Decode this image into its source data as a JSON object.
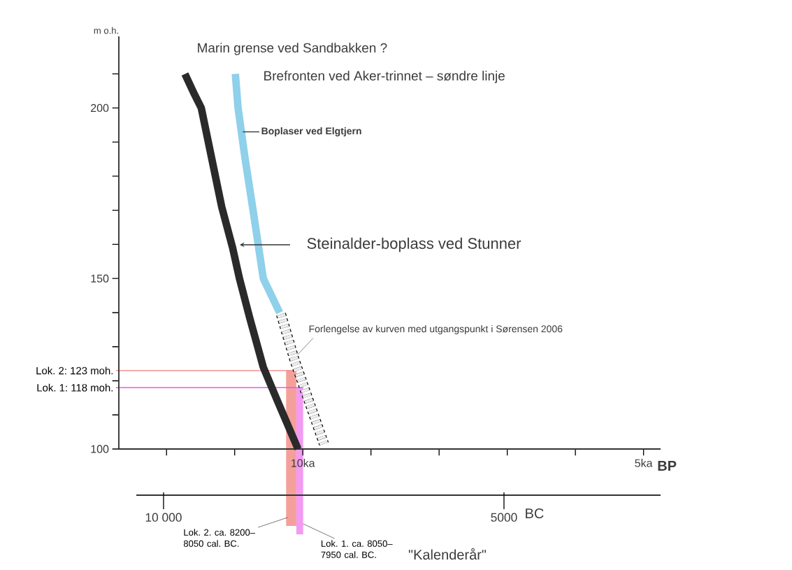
{
  "chart_data": {
    "type": "line",
    "title": "Marin grense ved Sandbakken ?",
    "ylabel": "m o.h.",
    "xlabel": "BP",
    "x2label": "BC",
    "xlim": [
      12.7,
      4.75
    ],
    "xticks": [
      {
        "value": 12,
        "label": null
      },
      {
        "value": 11,
        "label": null
      },
      {
        "value": 10,
        "label": "10ka"
      },
      {
        "value": 9,
        "label": null
      },
      {
        "value": 8,
        "label": null
      },
      {
        "value": 7,
        "label": null
      },
      {
        "value": 6,
        "label": null
      },
      {
        "value": 5,
        "label": "5ka"
      }
    ],
    "x2lim": [
      10400,
      2700
    ],
    "x2ticks": [
      {
        "value": 10000,
        "label": "10 000"
      },
      {
        "value": 5000,
        "label": "5000"
      }
    ],
    "ylim": [
      100,
      221
    ],
    "yticks": [
      100,
      {
        "value": 110,
        "label": null
      },
      {
        "value": 120,
        "label": null
      },
      {
        "value": 130,
        "label": null
      },
      {
        "value": 140,
        "label": null
      },
      150,
      {
        "value": 160,
        "label": null
      },
      {
        "value": 170,
        "label": null
      },
      {
        "value": 180,
        "label": null
      },
      {
        "value": 190,
        "label": null
      },
      200,
      {
        "value": 210,
        "label": null
      }
    ],
    "series": [
      {
        "type": "line",
        "color": "#2a2a2a",
        "x": [
          11.73,
          11.59,
          11.49,
          11.34,
          11.19,
          11.03,
          10.93,
          10.78,
          10.58,
          10.37,
          10.07
        ],
        "values": [
          210,
          204,
          200,
          185.5,
          171,
          159,
          150,
          138.5,
          124,
          114,
          100
        ]
      },
      {
        "type": "line",
        "color": "#8fd0ea",
        "x": [
          10.99,
          10.95,
          10.85,
          10.73,
          10.58,
          10.34
        ],
        "values": [
          210,
          200,
          185.5,
          170,
          150,
          140
        ]
      },
      {
        "type": "line",
        "color": "#000000",
        "line_style": "dashed",
        "x": [
          10.32,
          10.12,
          9.91,
          9.69
        ],
        "values": [
          139.5,
          126,
          114,
          101.5
        ]
      }
    ],
    "ref_lines": [
      {
        "axis": "y",
        "value": 123,
        "label": "Lok. 2: 123 moh.",
        "color": "#f07f7f"
      },
      {
        "axis": "y",
        "value": 118,
        "label": "Lok. 1: 118 moh.",
        "color": "#ee55ee"
      }
    ],
    "bands": [
      {
        "axis": "x2",
        "from": 8200,
        "to": 8050,
        "label": "Lok. 2. ca. 8200–8050 cal. BC.",
        "color": "#f4a09a"
      },
      {
        "axis": "x2",
        "from": 8050,
        "to": 7950,
        "label": "Lok. 1. ca. 8050–7950 cal. BC.",
        "color": "#f39af3"
      }
    ],
    "annotations": [
      "Brefronten ved Aker-trinnet – søndre linje",
      {
        "text": "Boplaser ved Elgtjern",
        "x": 10.88,
        "y": 193
      },
      "Steinalder-boplass ved Stunner",
      {
        "text": "Forlengelse av kurven med utgangspunkt i Sørensen 2006",
        "x": 10.12,
        "y": 127.6
      },
      "\"Kalenderår\""
    ]
  }
}
